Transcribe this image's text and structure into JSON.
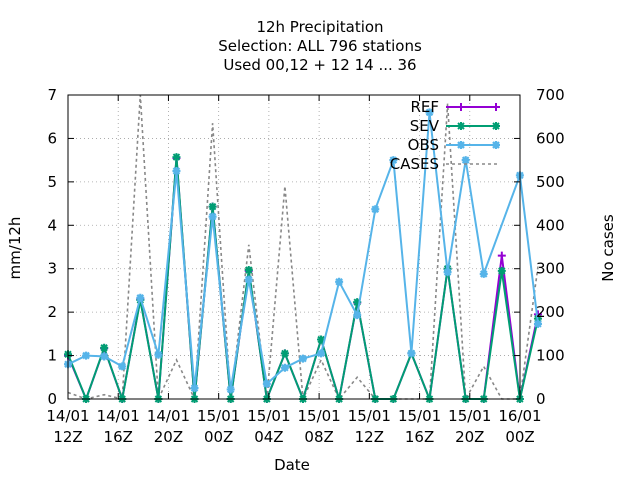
{
  "chart_data": {
    "type": "line",
    "title_lines": [
      "12h Precipitation",
      "Selection: ALL    796 stations",
      "Used  00,12  + 12 14 ... 36"
    ],
    "xlabel": "Date",
    "ylabel": "mm/12h",
    "y2label": "No cases",
    "ylim": [
      0,
      7
    ],
    "y2lim": [
      0,
      700
    ],
    "yticks": [
      "0",
      "1",
      "2",
      "3",
      "4",
      "5",
      "6",
      "7"
    ],
    "y2ticks": [
      "0",
      "100",
      "200",
      "300",
      "400",
      "500",
      "600",
      "700"
    ],
    "x_ticks": [
      {
        "top": "14/01",
        "bottom": "12Z"
      },
      {
        "top": "14/01",
        "bottom": "16Z"
      },
      {
        "top": "14/01",
        "bottom": "20Z"
      },
      {
        "top": "15/01",
        "bottom": "00Z"
      },
      {
        "top": "15/01",
        "bottom": "04Z"
      },
      {
        "top": "15/01",
        "bottom": "08Z"
      },
      {
        "top": "15/01",
        "bottom": "12Z"
      },
      {
        "top": "15/01",
        "bottom": "16Z"
      },
      {
        "top": "15/01",
        "bottom": "20Z"
      },
      {
        "top": "16/01",
        "bottom": "00Z"
      }
    ],
    "x_hours": [
      0,
      1,
      2,
      3,
      4,
      5,
      6,
      7,
      8,
      9,
      10,
      11,
      12,
      13,
      14,
      15,
      16,
      17,
      18,
      19,
      20,
      21,
      22,
      23,
      24,
      25,
      26,
      27,
      28,
      29,
      30,
      31,
      32,
      33,
      34,
      35,
      36
    ],
    "legend_position": "top-right",
    "grid": true,
    "series": [
      {
        "name": "REF",
        "color": "#9400d3",
        "marker": "plus",
        "axis": "y",
        "values": [
          1.0,
          0.0,
          1.17,
          0.0,
          2.3,
          0.0,
          5.55,
          0.0,
          4.43,
          0.0,
          2.95,
          0.0,
          1.05,
          0.0,
          1.37,
          0.0,
          2.22,
          0.0,
          0.0,
          1.05,
          0.0,
          3.0,
          0.0,
          0.0,
          3.3,
          0.0,
          1.95
        ]
      },
      {
        "name": "SEV",
        "color": "#009e73",
        "marker": "star",
        "axis": "y",
        "values": [
          1.03,
          0.0,
          1.18,
          0.0,
          2.28,
          0.0,
          5.57,
          0.0,
          4.43,
          0.0,
          2.97,
          0.0,
          1.05,
          0.0,
          1.37,
          0.0,
          2.23,
          0.0,
          0.0,
          1.05,
          0.0,
          3.0,
          0.0,
          0.0,
          2.95,
          0.0,
          1.85
        ]
      },
      {
        "name": "OBS",
        "color": "#56b4e9",
        "marker": "square",
        "axis": "y",
        "values": [
          0.8,
          1.0,
          0.98,
          0.75,
          2.33,
          1.02,
          5.25,
          0.25,
          4.2,
          0.22,
          2.75,
          0.35,
          0.72,
          0.93,
          1.05,
          2.7,
          1.93,
          4.37,
          5.5,
          1.05,
          6.6,
          2.92,
          5.5,
          2.88,
          5.15,
          1.73
        ],
        "x_hours": [
          0,
          1,
          2,
          3,
          4,
          5,
          6,
          7,
          8,
          9,
          10,
          11,
          12,
          13,
          14,
          15,
          16,
          17,
          18,
          19,
          20,
          21,
          22,
          23,
          25,
          26
        ]
      },
      {
        "name": "CASES",
        "color": "#888888",
        "marker": "none",
        "dash": true,
        "axis": "y2",
        "values": [
          15,
          0,
          10,
          0,
          700,
          0,
          90,
          0,
          635,
          0,
          355,
          0,
          490,
          0,
          90,
          0,
          50,
          0,
          0,
          0,
          0,
          680,
          0,
          75,
          0,
          0,
          305
        ],
        "x_hours": [
          0,
          1,
          2,
          3,
          4,
          5,
          6,
          7,
          8,
          9,
          10,
          11,
          12,
          13,
          14,
          15,
          16,
          17,
          18,
          19,
          20,
          21,
          22,
          23,
          24,
          25,
          26
        ]
      }
    ]
  }
}
